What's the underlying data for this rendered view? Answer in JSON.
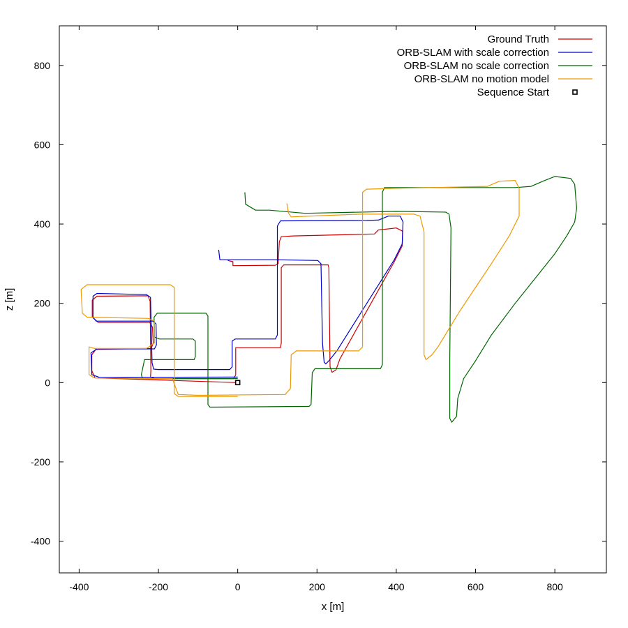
{
  "chart_data": {
    "type": "line",
    "title": "",
    "xlabel": "x [m]",
    "ylabel": "z [m]",
    "xlim": [
      -450,
      930
    ],
    "ylim": [
      -480,
      900
    ],
    "xticks": [
      -400,
      -200,
      0,
      200,
      400,
      600,
      800
    ],
    "yticks": [
      -400,
      -200,
      0,
      200,
      400,
      600,
      800
    ],
    "grid": false,
    "legend": "top-right",
    "series": [
      {
        "name": "Ground Truth",
        "color": "#cc0000",
        "points": [
          [
            0,
            0
          ],
          [
            -360,
            12
          ],
          [
            -368,
            30
          ],
          [
            -368,
            70
          ],
          [
            -358,
            84
          ],
          [
            -218,
            86
          ],
          [
            -213,
            100
          ],
          [
            -215,
            140
          ],
          [
            -222,
            152
          ],
          [
            -352,
            152
          ],
          [
            -367,
            165
          ],
          [
            -367,
            208
          ],
          [
            -355,
            218
          ],
          [
            -226,
            219
          ],
          [
            -221,
            205
          ],
          [
            -219,
            30
          ],
          [
            -220,
            14
          ],
          [
            -210,
            10
          ],
          [
            -10,
            10
          ],
          [
            -5,
            20
          ],
          [
            -5,
            88
          ],
          [
            108,
            88
          ],
          [
            110,
            100
          ],
          [
            110,
            290
          ],
          [
            116,
            297
          ],
          [
            228,
            297
          ],
          [
            230,
            290
          ],
          [
            233,
            40
          ],
          [
            238,
            26
          ],
          [
            248,
            32
          ],
          [
            258,
            60
          ],
          [
            395,
            305
          ],
          [
            415,
            345
          ],
          [
            416,
            382
          ],
          [
            400,
            390
          ],
          [
            355,
            385
          ],
          [
            345,
            375
          ],
          [
            140,
            370
          ],
          [
            110,
            368
          ],
          [
            105,
            355
          ],
          [
            102,
            300
          ],
          [
            95,
            296
          ],
          [
            -12,
            295
          ],
          [
            -12,
            305
          ],
          [
            -25,
            308
          ]
        ]
      },
      {
        "name": "ORB-SLAM with scale correction",
        "color": "#0000cc",
        "points": [
          [
            0,
            14
          ],
          [
            -348,
            13
          ],
          [
            -368,
            20
          ],
          [
            -370,
            75
          ],
          [
            -355,
            85
          ],
          [
            -210,
            85
          ],
          [
            -205,
            95
          ],
          [
            -206,
            148
          ],
          [
            -214,
            155
          ],
          [
            -357,
            155
          ],
          [
            -365,
            165
          ],
          [
            -365,
            218
          ],
          [
            -355,
            225
          ],
          [
            -230,
            222
          ],
          [
            -220,
            215
          ],
          [
            -216,
            50
          ],
          [
            -212,
            34
          ],
          [
            -200,
            33
          ],
          [
            -20,
            33
          ],
          [
            -14,
            40
          ],
          [
            -14,
            105
          ],
          [
            -6,
            110
          ],
          [
            95,
            110
          ],
          [
            100,
            120
          ],
          [
            100,
            395
          ],
          [
            108,
            408
          ],
          [
            325,
            409
          ],
          [
            355,
            410
          ],
          [
            380,
            420
          ],
          [
            410,
            420
          ],
          [
            417,
            405
          ],
          [
            415,
            350
          ],
          [
            395,
            310
          ],
          [
            250,
            80
          ],
          [
            230,
            55
          ],
          [
            222,
            47
          ],
          [
            218,
            52
          ],
          [
            214,
            100
          ],
          [
            210,
            300
          ],
          [
            202,
            308
          ],
          [
            90,
            310
          ],
          [
            -45,
            310
          ],
          [
            -48,
            335
          ]
        ]
      },
      {
        "name": "ORB-SLAM no scale correction",
        "color": "#006600",
        "points": [
          [
            0,
            10
          ],
          [
            -240,
            10
          ],
          [
            -243,
            20
          ],
          [
            -235,
            58
          ],
          [
            -110,
            58
          ],
          [
            -107,
            65
          ],
          [
            -107,
            105
          ],
          [
            -113,
            110
          ],
          [
            -198,
            110
          ],
          [
            -210,
            115
          ],
          [
            -211,
            165
          ],
          [
            -203,
            175
          ],
          [
            -80,
            175
          ],
          [
            -75,
            168
          ],
          [
            -75,
            -55
          ],
          [
            -70,
            -62
          ],
          [
            180,
            -60
          ],
          [
            185,
            -55
          ],
          [
            188,
            25
          ],
          [
            195,
            35
          ],
          [
            360,
            35
          ],
          [
            365,
            45
          ],
          [
            365,
            480
          ],
          [
            370,
            492
          ],
          [
            415,
            492
          ],
          [
            700,
            492
          ],
          [
            740,
            495
          ],
          [
            770,
            508
          ],
          [
            800,
            520
          ],
          [
            840,
            515
          ],
          [
            850,
            500
          ],
          [
            855,
            440
          ],
          [
            850,
            405
          ],
          [
            830,
            370
          ],
          [
            800,
            325
          ],
          [
            760,
            275
          ],
          [
            700,
            200
          ],
          [
            640,
            120
          ],
          [
            600,
            55
          ],
          [
            570,
            10
          ],
          [
            555,
            -40
          ],
          [
            552,
            -85
          ],
          [
            540,
            -100
          ],
          [
            535,
            -90
          ],
          [
            535,
            60
          ],
          [
            538,
            390
          ],
          [
            533,
            425
          ],
          [
            525,
            430
          ],
          [
            400,
            432
          ],
          [
            170,
            427
          ],
          [
            80,
            435
          ],
          [
            45,
            435
          ],
          [
            20,
            450
          ],
          [
            18,
            480
          ]
        ]
      },
      {
        "name": "ORB-SLAM no motion model",
        "color": "#ee9900",
        "points": [
          [
            0,
            -35
          ],
          [
            -150,
            -35
          ],
          [
            -160,
            -28
          ],
          [
            -160,
            240
          ],
          [
            -170,
            247
          ],
          [
            -380,
            247
          ],
          [
            -395,
            235
          ],
          [
            -392,
            175
          ],
          [
            -380,
            165
          ],
          [
            -225,
            162
          ],
          [
            -210,
            155
          ],
          [
            -210,
            100
          ],
          [
            -230,
            86
          ],
          [
            -360,
            86
          ],
          [
            -375,
            90
          ],
          [
            -375,
            20
          ],
          [
            -362,
            12
          ],
          [
            -225,
            10
          ],
          [
            -165,
            10
          ],
          [
            -150,
            -30
          ],
          [
            -100,
            -32
          ],
          [
            120,
            -30
          ],
          [
            133,
            -15
          ],
          [
            135,
            70
          ],
          [
            148,
            80
          ],
          [
            305,
            80
          ],
          [
            315,
            90
          ],
          [
            315,
            480
          ],
          [
            325,
            488
          ],
          [
            400,
            490
          ],
          [
            630,
            495
          ],
          [
            660,
            508
          ],
          [
            700,
            510
          ],
          [
            710,
            490
          ],
          [
            710,
            420
          ],
          [
            685,
            370
          ],
          [
            640,
            300
          ],
          [
            560,
            180
          ],
          [
            505,
            90
          ],
          [
            490,
            70
          ],
          [
            475,
            58
          ],
          [
            470,
            70
          ],
          [
            470,
            380
          ],
          [
            460,
            420
          ],
          [
            445,
            425
          ],
          [
            310,
            425
          ],
          [
            230,
            422
          ],
          [
            135,
            418
          ],
          [
            128,
            428
          ],
          [
            124,
            452
          ]
        ]
      }
    ],
    "markers": [
      {
        "name": "Sequence Start",
        "x": 0,
        "y": 0,
        "shape": "square",
        "color": "#000000"
      }
    ]
  }
}
